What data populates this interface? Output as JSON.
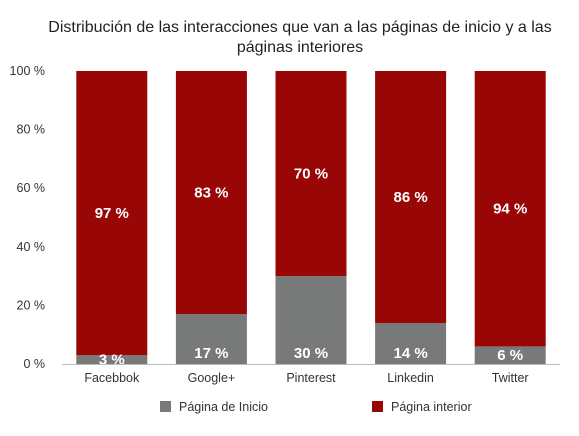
{
  "chart_data": {
    "type": "bar",
    "stacked": true,
    "percent": true,
    "title": "Distribución de las interacciones que van a las páginas de inicio y a las páginas interiores",
    "categories": [
      "Facebbok",
      "Google+",
      "Pinterest",
      "Linkedin",
      "Twitter"
    ],
    "series": [
      {
        "name": "Página de Inicio",
        "color": "#777a78",
        "values": [
          3,
          17,
          30,
          14,
          6
        ],
        "labels": [
          "3 %",
          "17 %",
          "30 %",
          "14 %",
          "6 %"
        ]
      },
      {
        "name": "Página interior",
        "color": "#990606",
        "values": [
          97,
          83,
          70,
          86,
          94
        ],
        "labels": [
          "97 %",
          "83 %",
          "70 %",
          "86 %",
          "94 %"
        ]
      }
    ],
    "ylim": [
      0,
      100
    ],
    "yticks": [
      0,
      20,
      40,
      60,
      80,
      100
    ],
    "ytick_labels": [
      "0 %",
      "20 %",
      "40 %",
      "60 %",
      "80 %",
      "100 %"
    ],
    "xlabel": "",
    "ylabel": "",
    "grid": false,
    "legend": "bottom"
  }
}
